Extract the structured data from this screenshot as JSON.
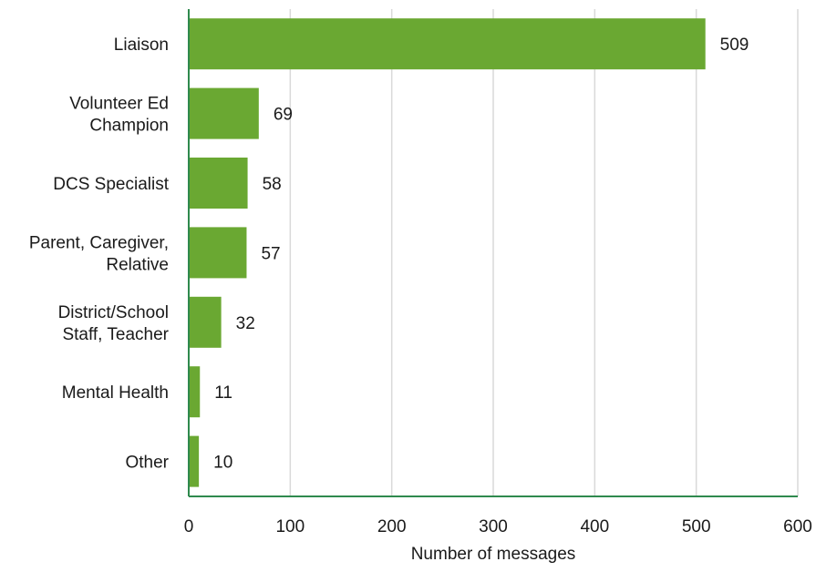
{
  "chart_data": {
    "type": "bar",
    "orientation": "horizontal",
    "title": "",
    "xlabel": "Number of messages",
    "ylabel": "",
    "categories": [
      [
        "Liaison"
      ],
      [
        "Volunteer Ed",
        "Champion"
      ],
      [
        "DCS Specialist"
      ],
      [
        "Parent, Caregiver,",
        "Relative"
      ],
      [
        "District/School",
        "Staff, Teacher"
      ],
      [
        "Mental Health"
      ],
      [
        "Other"
      ]
    ],
    "values": [
      509,
      69,
      58,
      57,
      32,
      11,
      10
    ],
    "xlim": [
      0,
      600
    ],
    "xticks": [
      0,
      100,
      200,
      300,
      400,
      500,
      600
    ],
    "grid": "vertical",
    "legend": "none",
    "colors": {
      "bar": "#6aa832",
      "axis": "#2f8a4e",
      "grid": "#d9d9d9",
      "text": "#1a1a1a"
    }
  }
}
